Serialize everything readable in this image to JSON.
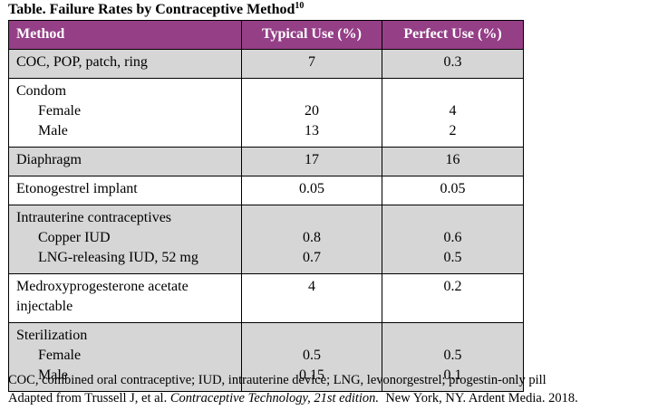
{
  "title": {
    "text": "Table. Failure Rates by Contraceptive Method",
    "ref": "10"
  },
  "headers": [
    "Method",
    "Typical Use (%)",
    "Perfect Use (%)"
  ],
  "rows": [
    {
      "method": "COC, POP, patch, ring",
      "typical": "7",
      "perfect": "0.3"
    },
    {
      "method": "Condom",
      "sub": [
        {
          "label": "Female",
          "typical": "20",
          "perfect": "4"
        },
        {
          "label": "Male",
          "typical": "13",
          "perfect": "2"
        }
      ]
    },
    {
      "method": "Diaphragm",
      "typical": "17",
      "perfect": "16"
    },
    {
      "method": "Etonogestrel implant",
      "typical": "0.05",
      "perfect": "0.05"
    },
    {
      "method": "Intrauterine contraceptives",
      "sub": [
        {
          "label": "Copper IUD",
          "typical": "0.8",
          "perfect": "0.6"
        },
        {
          "label": "LNG-releasing IUD, 52 mg",
          "typical": "0.7",
          "perfect": "0.5"
        }
      ]
    },
    {
      "method": "Medroxyprogesterone acetate injectable",
      "typical": "4",
      "perfect": "0.2"
    },
    {
      "method": "Sterilization",
      "sub": [
        {
          "label": "Female",
          "typical": "0.5",
          "perfect": "0.5"
        },
        {
          "label": "Male",
          "typical": "0.15",
          "perfect": "0.1"
        }
      ]
    }
  ],
  "footnotes": {
    "abbreviations": "COC, combined oral contraceptive; IUD, intrauterine device; LNG, levonorgestrel; progestin-only pill",
    "source_prefix": "Adapted from Trussell J, et al. ",
    "source_title": "Contraceptive Technology, 21st edition.",
    "source_suffix": "  New York, NY. Ardent Media. 2018."
  },
  "colors": {
    "header_bg": "#953f87",
    "shade_bg": "#d6d6d6"
  }
}
